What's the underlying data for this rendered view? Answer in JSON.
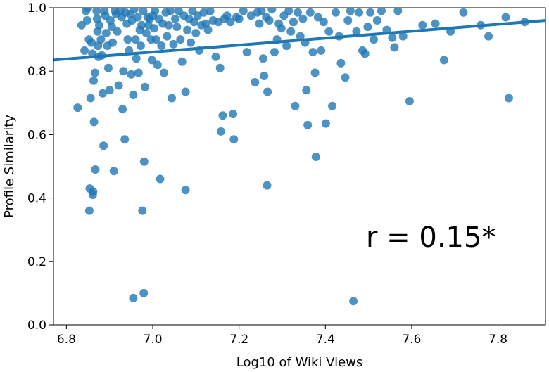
{
  "chart_data": {
    "type": "scatter",
    "xlabel": "Log10 of Wiki Views",
    "ylabel": "Profile Similarity",
    "xlim": [
      6.77,
      7.91
    ],
    "ylim": [
      0.0,
      1.0
    ],
    "xticks": [
      6.8,
      7.0,
      7.2,
      7.4,
      7.6,
      7.8
    ],
    "xtick_labels": [
      "6.8",
      "7.0",
      "7.2",
      "7.4",
      "7.6",
      "7.8"
    ],
    "yticks": [
      0.0,
      0.2,
      0.4,
      0.6,
      0.8,
      1.0
    ],
    "ytick_labels": [
      "0.0",
      "0.2",
      "0.4",
      "0.6",
      "0.8",
      "1.0"
    ],
    "grid": false,
    "annotation": "r = 0.15*",
    "colors": {
      "points": "#1f77b4",
      "line": "#1f77b4"
    },
    "regression_line": {
      "x": [
        6.77,
        7.91
      ],
      "y": [
        0.835,
        0.96
      ]
    },
    "points": [
      [
        6.826,
        0.685
      ],
      [
        6.835,
        0.945
      ],
      [
        6.842,
        0.865
      ],
      [
        6.845,
        0.99
      ],
      [
        6.848,
        0.96
      ],
      [
        6.85,
        1.0
      ],
      [
        6.852,
        0.9
      ],
      [
        6.853,
        0.36
      ],
      [
        6.854,
        0.43
      ],
      [
        6.856,
        0.715
      ],
      [
        6.858,
        0.89
      ],
      [
        6.86,
        0.855
      ],
      [
        6.861,
        0.41
      ],
      [
        6.862,
        0.42
      ],
      [
        6.863,
        0.77
      ],
      [
        6.864,
        0.64
      ],
      [
        6.866,
        0.795
      ],
      [
        6.867,
        0.49
      ],
      [
        6.87,
        0.99
      ],
      [
        6.871,
        0.965
      ],
      [
        6.872,
        0.925
      ],
      [
        6.873,
        0.88
      ],
      [
        6.874,
        0.845
      ],
      [
        6.876,
        0.945
      ],
      [
        6.88,
        0.9
      ],
      [
        6.882,
        0.85
      ],
      [
        6.884,
        0.73
      ],
      [
        6.886,
        0.565
      ],
      [
        6.888,
        0.99
      ],
      [
        6.89,
        0.975
      ],
      [
        6.892,
        0.92
      ],
      [
        6.895,
        0.88
      ],
      [
        6.897,
        0.81
      ],
      [
        6.9,
        0.74
      ],
      [
        6.902,
        0.96
      ],
      [
        6.905,
        0.94
      ],
      [
        6.907,
        0.89
      ],
      [
        6.91,
        0.485
      ],
      [
        6.912,
        0.99
      ],
      [
        6.915,
        0.98
      ],
      [
        6.918,
        0.925
      ],
      [
        6.921,
        0.755
      ],
      [
        6.925,
        0.99
      ],
      [
        6.928,
        0.97
      ],
      [
        6.93,
        0.68
      ],
      [
        6.932,
        0.8
      ],
      [
        6.935,
        0.585
      ],
      [
        6.937,
        0.985
      ],
      [
        6.94,
        0.95
      ],
      [
        6.942,
        0.9
      ],
      [
        6.945,
        0.865
      ],
      [
        6.948,
        0.98
      ],
      [
        6.95,
        0.79
      ],
      [
        6.952,
        0.96
      ],
      [
        6.955,
        0.725
      ],
      [
        6.955,
        0.085
      ],
      [
        6.957,
        0.995
      ],
      [
        6.96,
        0.9
      ],
      [
        6.962,
        0.84
      ],
      [
        6.965,
        0.97
      ],
      [
        6.967,
        0.795
      ],
      [
        6.97,
        0.93
      ],
      [
        6.972,
        0.88
      ],
      [
        6.974,
        0.945
      ],
      [
        6.976,
        0.36
      ],
      [
        6.978,
        0.99
      ],
      [
        6.979,
        0.1
      ],
      [
        6.98,
        0.515
      ],
      [
        6.982,
        0.75
      ],
      [
        6.985,
        0.92
      ],
      [
        6.988,
        0.97
      ],
      [
        6.99,
        0.945
      ],
      [
        6.993,
        0.965
      ],
      [
        6.996,
        0.9
      ],
      [
        6.998,
        0.835
      ],
      [
        7.0,
        0.975
      ],
      [
        7.003,
        0.935
      ],
      [
        7.005,
        0.99
      ],
      [
        7.008,
        0.9
      ],
      [
        7.011,
        0.82
      ],
      [
        7.014,
        0.965
      ],
      [
        7.017,
        0.46
      ],
      [
        7.02,
        0.88
      ],
      [
        7.023,
        0.95
      ],
      [
        7.026,
        0.795
      ],
      [
        7.03,
        0.985
      ],
      [
        7.033,
        0.91
      ],
      [
        7.037,
        0.945
      ],
      [
        7.041,
        0.99
      ],
      [
        7.044,
        0.715
      ],
      [
        7.048,
        0.885
      ],
      [
        7.052,
        0.965
      ],
      [
        7.056,
        0.94
      ],
      [
        7.06,
        0.99
      ],
      [
        7.064,
        0.9
      ],
      [
        7.068,
        0.83
      ],
      [
        7.072,
        0.975
      ],
      [
        7.076,
        0.425
      ],
      [
        7.076,
        0.735
      ],
      [
        7.08,
        0.93
      ],
      [
        7.084,
        0.965
      ],
      [
        7.088,
        0.89
      ],
      [
        7.092,
        0.99
      ],
      [
        7.096,
        0.955
      ],
      [
        7.1,
        0.92
      ],
      [
        7.104,
        0.975
      ],
      [
        7.108,
        0.865
      ],
      [
        7.113,
        0.945
      ],
      [
        7.118,
        0.985
      ],
      [
        7.123,
        0.95
      ],
      [
        7.128,
        0.93
      ],
      [
        7.133,
        0.99
      ],
      [
        7.14,
        0.96
      ],
      [
        7.146,
        0.845
      ],
      [
        7.152,
        0.955
      ],
      [
        7.156,
        0.81
      ],
      [
        7.158,
        0.61
      ],
      [
        7.162,
        0.66
      ],
      [
        7.166,
        0.965
      ],
      [
        7.172,
        0.975
      ],
      [
        7.18,
        0.955
      ],
      [
        7.186,
        0.665
      ],
      [
        7.188,
        0.585
      ],
      [
        7.194,
        0.97
      ],
      [
        7.2,
        0.965
      ],
      [
        7.21,
        0.99
      ],
      [
        7.218,
        0.86
      ],
      [
        7.228,
        0.975
      ],
      [
        7.237,
        0.765
      ],
      [
        7.242,
        0.985
      ],
      [
        7.247,
        0.95
      ],
      [
        7.252,
        0.99
      ],
      [
        7.256,
        0.84
      ],
      [
        7.258,
        0.785
      ],
      [
        7.263,
        0.97
      ],
      [
        7.265,
        0.44
      ],
      [
        7.266,
        0.735
      ],
      [
        7.27,
        0.96
      ],
      [
        7.276,
        0.995
      ],
      [
        7.282,
        0.86
      ],
      [
        7.288,
        0.9
      ],
      [
        7.292,
        0.95
      ],
      [
        7.298,
        0.935
      ],
      [
        7.304,
        0.975
      ],
      [
        7.31,
        0.88
      ],
      [
        7.315,
        0.99
      ],
      [
        7.32,
        0.925
      ],
      [
        7.326,
        0.955
      ],
      [
        7.33,
        0.69
      ],
      [
        7.336,
        0.985
      ],
      [
        7.342,
        0.91
      ],
      [
        7.348,
        0.965
      ],
      [
        7.353,
        0.89
      ],
      [
        7.356,
        0.74
      ],
      [
        7.359,
        0.63
      ],
      [
        7.365,
        0.985
      ],
      [
        7.371,
        0.86
      ],
      [
        7.376,
        0.795
      ],
      [
        7.378,
        0.53
      ],
      [
        7.383,
        0.97
      ],
      [
        7.39,
        0.865
      ],
      [
        7.396,
        0.955
      ],
      [
        7.401,
        0.635
      ],
      [
        7.408,
        0.925
      ],
      [
        7.416,
        0.69
      ],
      [
        7.424,
        0.985
      ],
      [
        7.432,
        0.91
      ],
      [
        7.436,
        0.825
      ],
      [
        7.446,
        0.78
      ],
      [
        7.452,
        0.96
      ],
      [
        7.458,
        0.99
      ],
      [
        7.465,
        0.075
      ],
      [
        7.472,
        0.925
      ],
      [
        7.478,
        0.985
      ],
      [
        7.486,
        0.865
      ],
      [
        7.492,
        0.855
      ],
      [
        7.498,
        0.94
      ],
      [
        7.504,
        0.985
      ],
      [
        7.512,
        0.9
      ],
      [
        7.52,
        0.96
      ],
      [
        7.53,
        0.99
      ],
      [
        7.542,
        0.93
      ],
      [
        7.555,
        0.905
      ],
      [
        7.56,
        0.875
      ],
      [
        7.568,
        0.99
      ],
      [
        7.58,
        0.91
      ],
      [
        7.595,
        0.705
      ],
      [
        7.625,
        0.945
      ],
      [
        7.655,
        0.95
      ],
      [
        7.675,
        0.835
      ],
      [
        7.69,
        0.925
      ],
      [
        7.72,
        0.985
      ],
      [
        7.76,
        0.945
      ],
      [
        7.778,
        0.91
      ],
      [
        7.818,
        0.97
      ],
      [
        7.825,
        0.715
      ],
      [
        7.862,
        0.955
      ]
    ]
  }
}
